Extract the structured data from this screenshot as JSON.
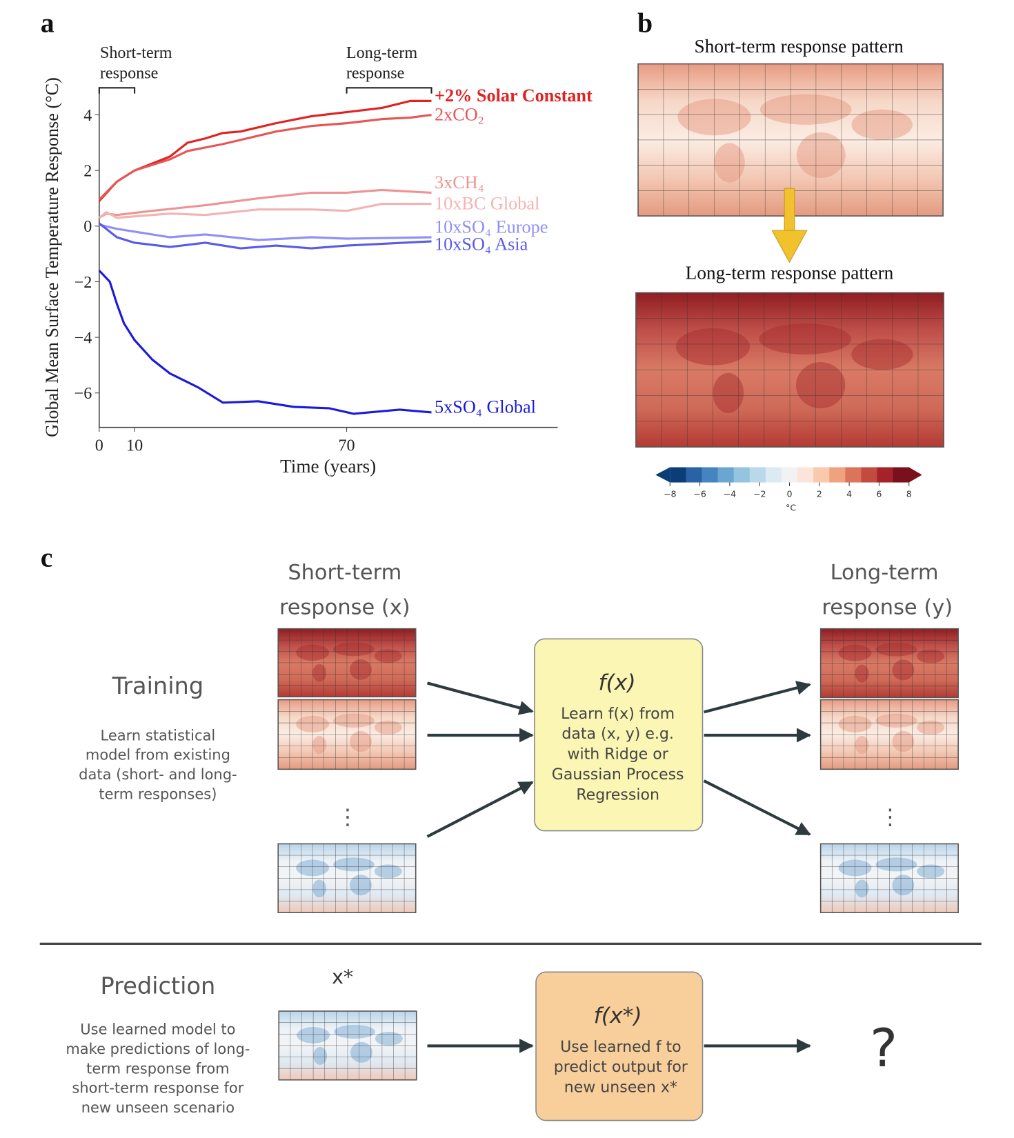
{
  "panels": {
    "a": "a",
    "b": "b",
    "c": "c"
  },
  "chart_data": {
    "type": "line",
    "xlabel": "Time (years)",
    "ylabel": "Global Mean Surface Temperature Response (°C)",
    "xlim": [
      0,
      130
    ],
    "ylim": [
      -7.2,
      5
    ],
    "x_ticks": [
      0,
      10,
      70
    ],
    "y_ticks": [
      4,
      2,
      0,
      -2,
      -4,
      -6
    ],
    "grid": false,
    "annotations": {
      "short_term": {
        "line1": "Short-term",
        "line2": "response",
        "range": [
          0,
          10
        ]
      },
      "long_term": {
        "line1": "Long-term",
        "line2": "response",
        "range": [
          70,
          94
        ]
      }
    },
    "series": [
      {
        "name": "+2% Solar Constant",
        "color": "#e02222",
        "x": [
          0,
          5,
          10,
          15,
          20,
          25,
          30,
          35,
          40,
          50,
          60,
          70,
          80,
          88,
          94
        ],
        "y": [
          0.9,
          1.6,
          2.0,
          2.25,
          2.5,
          3.0,
          3.15,
          3.35,
          3.4,
          3.7,
          3.95,
          4.1,
          4.25,
          4.5,
          4.5
        ]
      },
      {
        "name": "2xCO₂",
        "color": "#e85555",
        "x": [
          0,
          5,
          10,
          15,
          20,
          25,
          35,
          50,
          60,
          70,
          80,
          88,
          94
        ],
        "y": [
          0.95,
          1.6,
          2.0,
          2.2,
          2.4,
          2.7,
          2.95,
          3.4,
          3.6,
          3.7,
          3.85,
          3.9,
          4.0
        ]
      },
      {
        "name": "3xCH₄",
        "color": "#ee9393",
        "x": [
          0,
          2,
          5,
          15,
          30,
          45,
          60,
          70,
          80,
          94
        ],
        "y": [
          0.3,
          0.45,
          0.4,
          0.55,
          0.75,
          1.0,
          1.2,
          1.2,
          1.3,
          1.2
        ]
      },
      {
        "name": "10xBC Global",
        "color": "#f4b3b3",
        "x": [
          0,
          2,
          5,
          20,
          30,
          45,
          60,
          70,
          80,
          94
        ],
        "y": [
          0.3,
          0.5,
          0.3,
          0.45,
          0.4,
          0.6,
          0.6,
          0.55,
          0.8,
          0.8
        ]
      },
      {
        "name": "10xSO₄ Europe",
        "color": "#9090f5",
        "x": [
          0,
          5,
          15,
          20,
          30,
          45,
          60,
          70,
          94
        ],
        "y": [
          0.05,
          -0.1,
          -0.3,
          -0.4,
          -0.3,
          -0.5,
          -0.4,
          -0.45,
          -0.4
        ]
      },
      {
        "name": "10xSO₄ Asia",
        "color": "#5a5ae8",
        "x": [
          0,
          5,
          10,
          20,
          30,
          40,
          50,
          60,
          70,
          94
        ],
        "y": [
          0.1,
          -0.4,
          -0.6,
          -0.75,
          -0.6,
          -0.8,
          -0.7,
          -0.8,
          -0.7,
          -0.55
        ]
      },
      {
        "name": "5xSO₄ Global",
        "color": "#1a1adc",
        "x": [
          0,
          3,
          5,
          7,
          10,
          15,
          20,
          28,
          35,
          45,
          55,
          65,
          72,
          85,
          94
        ],
        "y": [
          -1.6,
          -2.0,
          -2.8,
          -3.5,
          -4.1,
          -4.8,
          -5.3,
          -5.8,
          -6.35,
          -6.3,
          -6.5,
          -6.55,
          -6.75,
          -6.6,
          -6.7
        ]
      }
    ]
  },
  "panel_b": {
    "short_title": "Short-term response pattern",
    "long_title": "Long-term response pattern",
    "arrow_color": "#f2c12e",
    "colorbar": {
      "ticks": [
        "−8",
        "−6",
        "−4",
        "−2",
        "0",
        "2",
        "4",
        "6",
        "8"
      ],
      "unit": "°C",
      "colors": [
        "#0b3d78",
        "#2a62a8",
        "#4384c1",
        "#6aa6d1",
        "#94c4df",
        "#b9d8ea",
        "#dbeaf3",
        "#f2f2f2",
        "#fbe5d8",
        "#f8c9ad",
        "#f0a27f",
        "#dc735b",
        "#c34a3f",
        "#a52229",
        "#7a0f1e"
      ]
    }
  },
  "panel_c": {
    "short_heading": {
      "line1": "Short-term",
      "line2": "response (x)"
    },
    "long_heading": {
      "line1": "Long-term",
      "line2": "response (y)"
    },
    "training": {
      "title": "Training",
      "lines": [
        "Learn statistical",
        "model from existing",
        "data (short- and long-",
        "term responses)"
      ]
    },
    "model_box": {
      "title": "f(x)",
      "lines": [
        "Learn f(x) from",
        "data (x, y) e.g.",
        "with Ridge or",
        "Gaussian Process",
        "Regression"
      ],
      "fill": "#fbf6b4"
    },
    "prediction": {
      "title": "Prediction",
      "input_label": "x*",
      "lines": [
        "Use learned model to",
        "make predictions of long-",
        "term response from",
        "short-term response for",
        "new unseen scenario"
      ]
    },
    "predict_box": {
      "title": "f(x*)",
      "lines": [
        "Use learned f to",
        "predict output for",
        "new unseen x*"
      ],
      "fill": "#f8cf9a"
    },
    "output_unknown": "?",
    "ellipsis": "⋮"
  }
}
